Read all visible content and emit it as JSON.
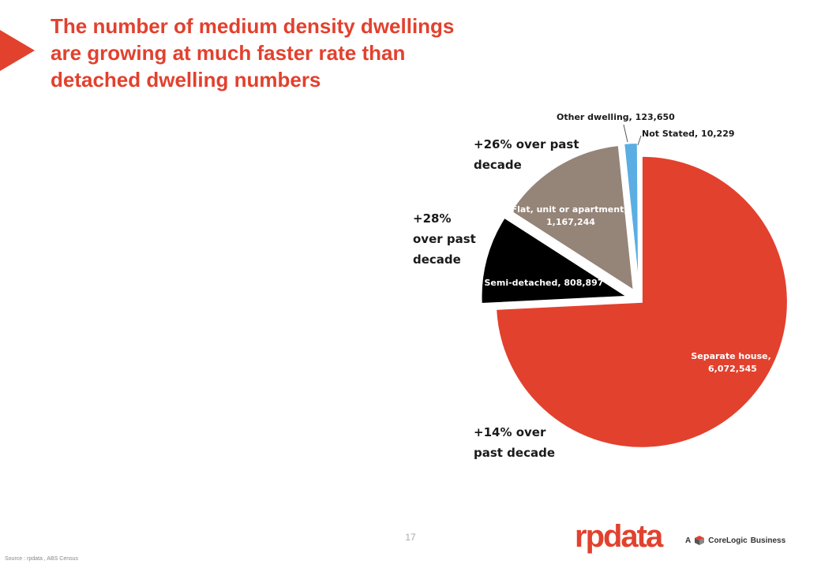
{
  "title_lines": [
    "The number of medium density dwellings",
    "are growing at much faster rate than",
    "detached dwelling numbers"
  ],
  "chart_data": {
    "type": "pie",
    "title": "",
    "slices": [
      {
        "label": "Separate house",
        "value": 6072545,
        "value_text": "6,072,545",
        "color": "#e2412e"
      },
      {
        "label": "Semi-detached",
        "value": 808897,
        "value_text": "808,897",
        "color": "#000000"
      },
      {
        "label": "Flat, unit or apartment",
        "value": 1167244,
        "value_text": "1,167,244",
        "color": "#958478"
      },
      {
        "label": "Other dwelling",
        "value": 123650,
        "value_text": "123,650",
        "color": "#5aaee3"
      },
      {
        "label": "Not Stated",
        "value": 10229,
        "value_text": "10,229",
        "color": "#d9d9d9"
      }
    ],
    "labels_text": {
      "separate_house": [
        "Separate house,",
        "6,072,545"
      ],
      "semi_detached": [
        "Semi-detached, 808,897"
      ],
      "flat": [
        "Flat, unit or apartment,",
        "1,167,244"
      ],
      "other": [
        "Other dwelling, 123,650"
      ],
      "not_stated": [
        "Not Stated, 10,229"
      ]
    },
    "annotations": {
      "flat_growth": [
        "+26% over past",
        "decade"
      ],
      "semi_growth": [
        "+28%",
        "over past",
        "decade"
      ],
      "house_growth": [
        "+14% over",
        "past decade"
      ]
    }
  },
  "footer": {
    "page_number": "17",
    "source": "Source : rpdata , ABS Census",
    "logo": "rpdata",
    "logo_tag_prefix": "A",
    "logo_tag_brand": "CoreLogic",
    "logo_tag_suffix": "Business"
  },
  "colors": {
    "accent": "#e2412e"
  }
}
